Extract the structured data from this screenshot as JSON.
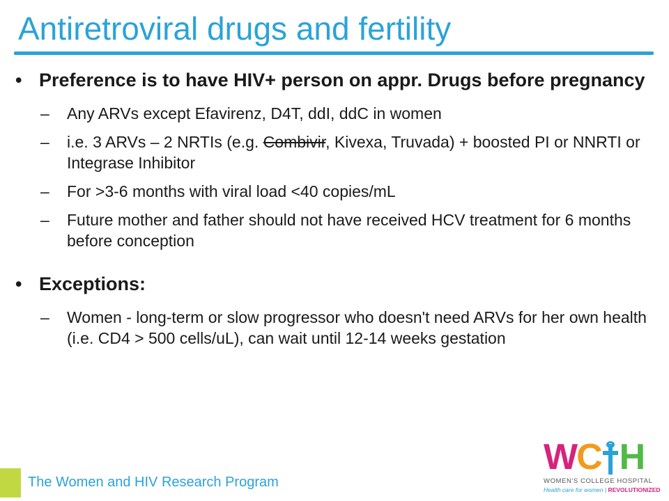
{
  "slide": {
    "title": "Antiretroviral drugs and fertility",
    "bullet1": "Preference is to have HIV+ person on appr. Drugs before pregnancy",
    "sub1": "Any ARVs except Efavirenz, D4T, ddI, ddC in women",
    "sub2_pre": "i.e. 3 ARVs – 2 NRTIs (e.g. ",
    "sub2_strike": "Combivir",
    "sub2_post": ", Kivexa, Truvada) + boosted PI or NNRTI or Integrase Inhibitor",
    "sub3": "For >3-6 months with viral load <40 copies/mL",
    "sub4": "Future mother and father should not have received HCV treatment for 6 months before conception",
    "bullet2": "Exceptions:",
    "sub5": "Women - long-term or slow progressor who doesn't need ARVs for her own health (i.e. CD4 > 500 cells/uL), can wait until 12-14 weeks gestation",
    "bullet_char": "•",
    "dash_char": "–"
  },
  "footer": {
    "text": "The Women and HIV Research Program"
  },
  "logo": {
    "w": "W",
    "c": "C",
    "h": "H",
    "name": "WOMEN'S COLLEGE HOSPITAL",
    "tagline": "Health care for women",
    "tagline_emph": "REVOLUTIONIZED"
  },
  "colors": {
    "accent": "#2aa3d8",
    "footer_square": "#c2d842",
    "logo_w": "#d6237d",
    "logo_c": "#f29a1f",
    "logo_h": "#52b947"
  }
}
